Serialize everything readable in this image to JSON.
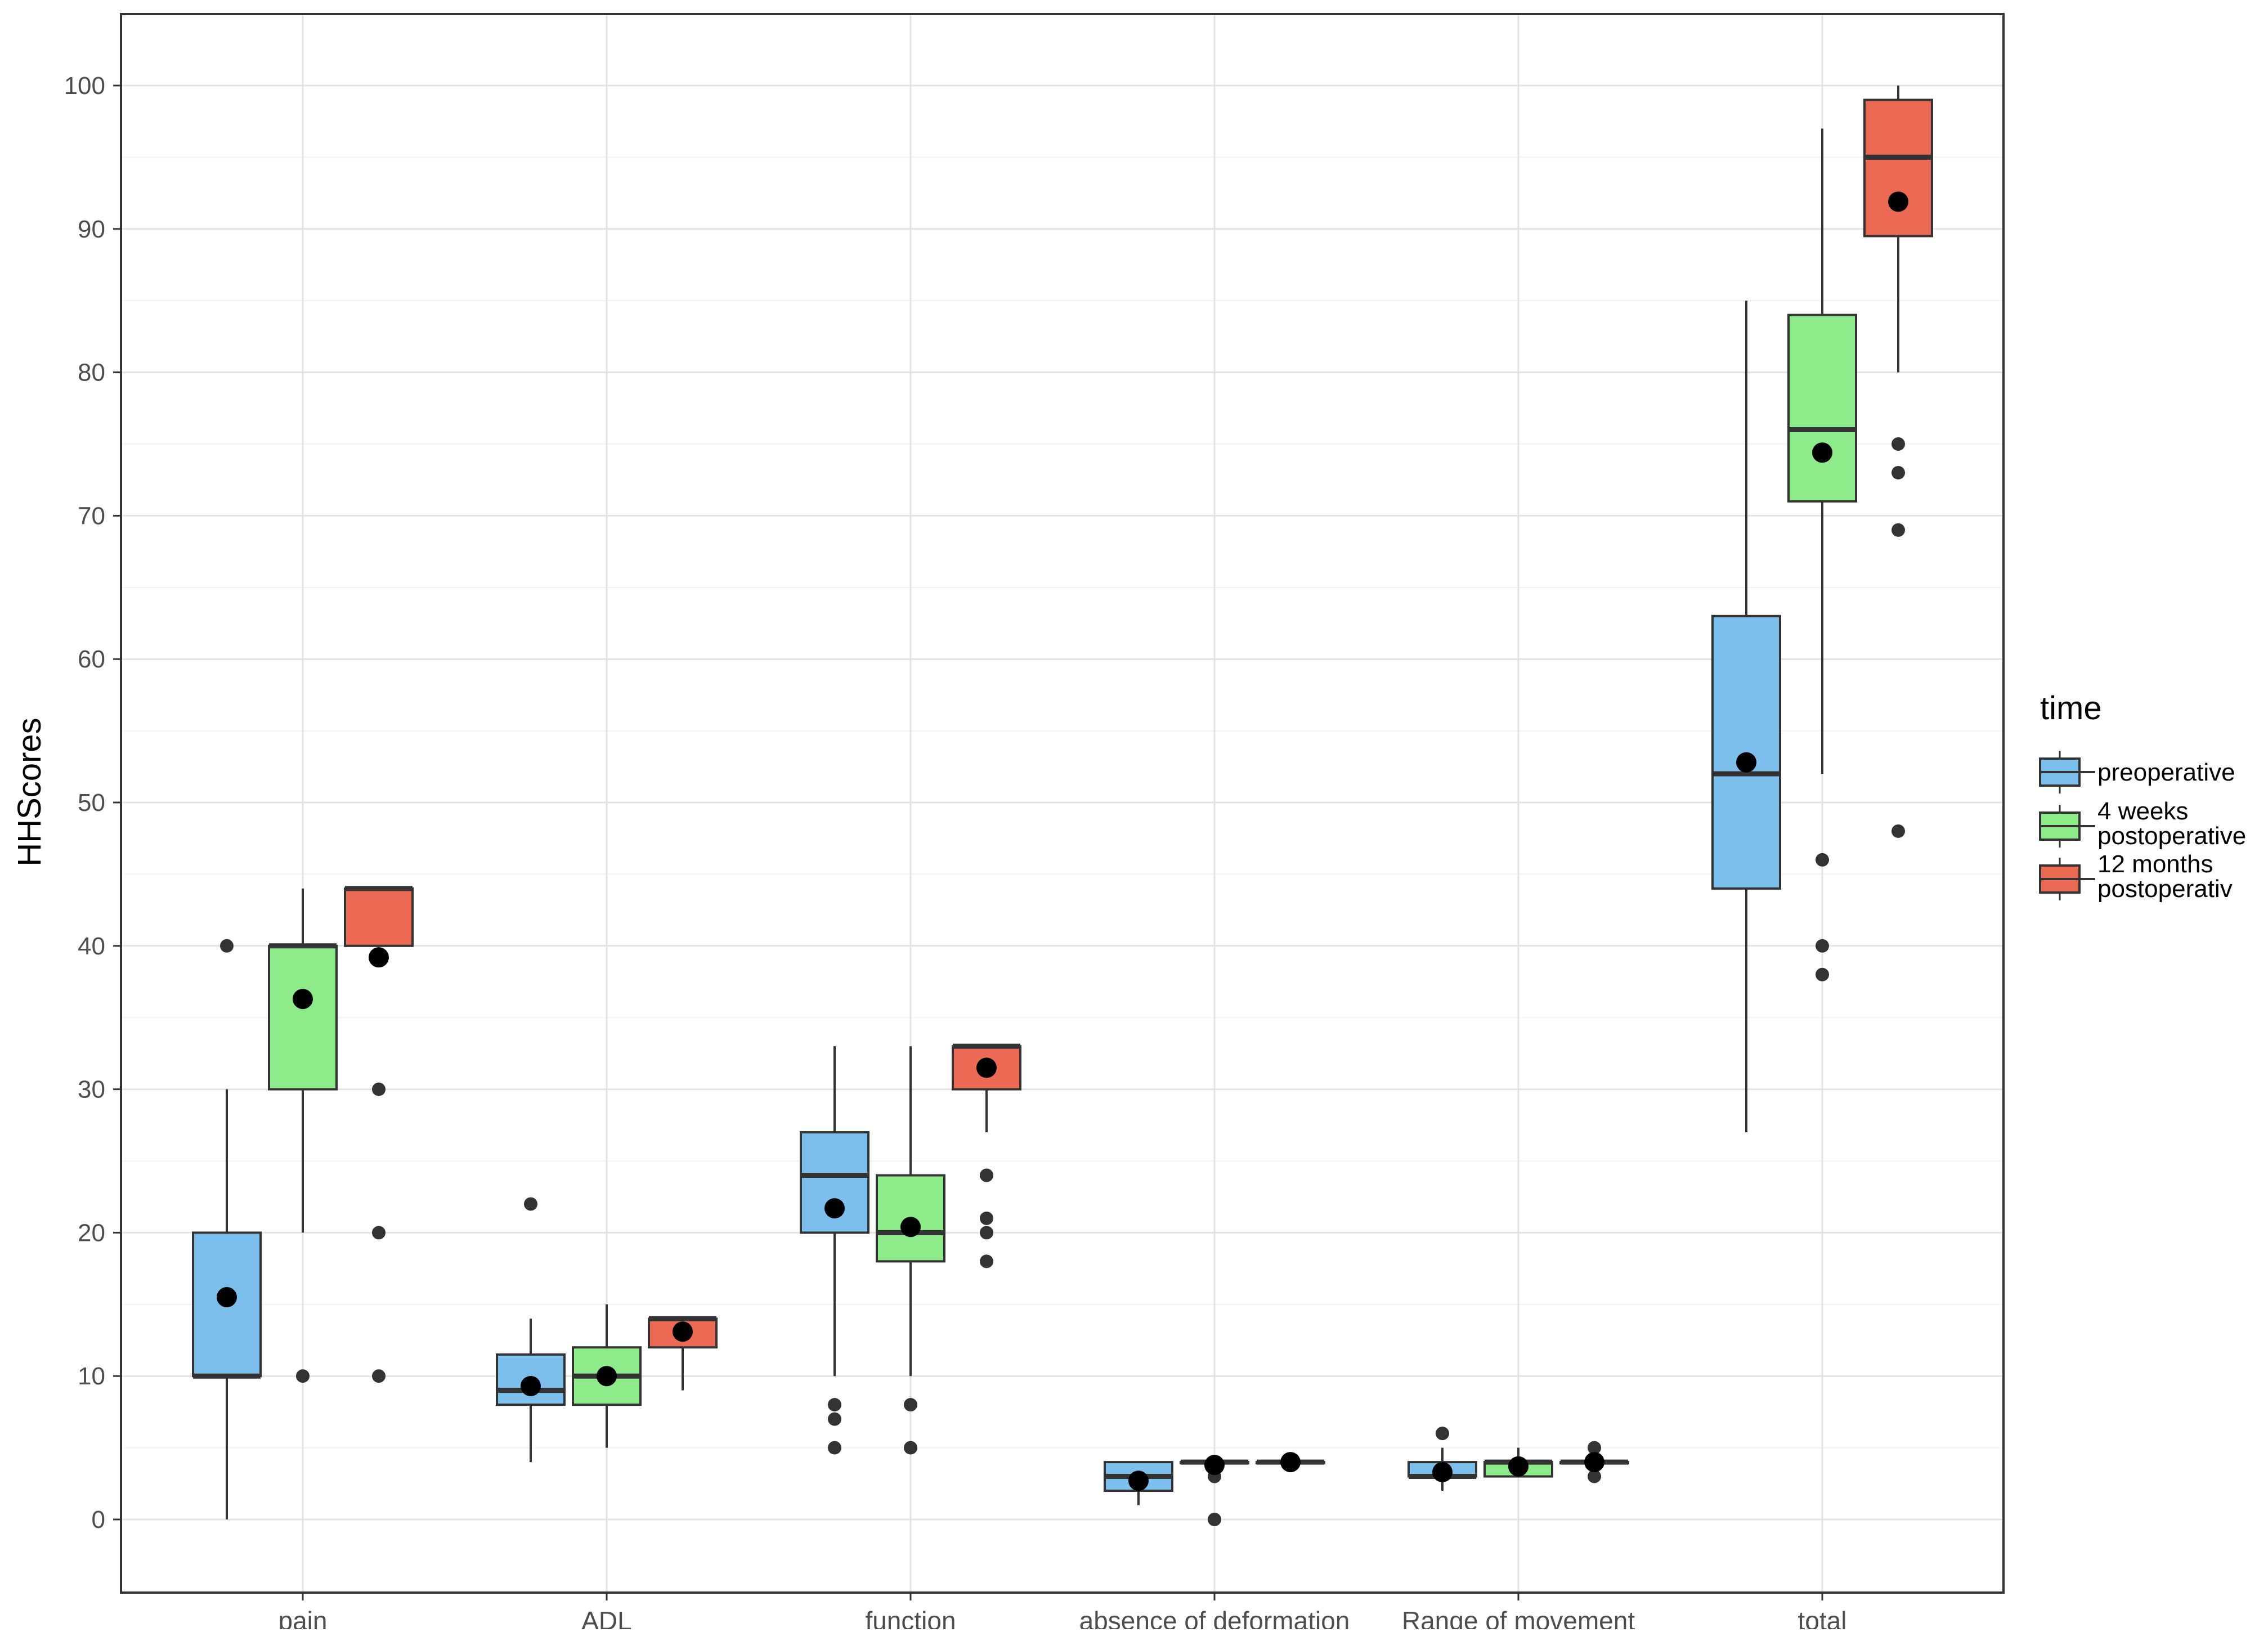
{
  "chart_data": {
    "type": "box",
    "ylabel": "HHScores",
    "xlabel": "",
    "ylim": [
      -5,
      105
    ],
    "yticks": [
      0,
      10,
      20,
      30,
      40,
      50,
      60,
      70,
      80,
      90,
      100
    ],
    "grid": true,
    "legend_position": "right",
    "categories": [
      "pain",
      "ADL",
      "function",
      "absence of deformation",
      "Range of movement",
      "total"
    ],
    "legend": {
      "title": "time",
      "entries": [
        {
          "label_lines": [
            "preoperative"
          ],
          "color": "#7dbfec"
        },
        {
          "label_lines": [
            "4 weeks",
            "postoperative"
          ],
          "color": "#8deb8a"
        },
        {
          "label_lines": [
            "12 months",
            "postoperativ"
          ],
          "color": "#ec6953"
        }
      ]
    },
    "series": [
      {
        "name": "preoperative",
        "color": "#7dbfec",
        "boxes": [
          {
            "category": "pain",
            "whisker_low": 0,
            "q1": 10,
            "median": 10,
            "q3": 20,
            "whisker_high": 30,
            "mean": 15.5,
            "outliers": [
              40
            ]
          },
          {
            "category": "ADL",
            "whisker_low": 4,
            "q1": 8,
            "median": 9,
            "q3": 11.5,
            "whisker_high": 14,
            "mean": 9.3,
            "outliers": [
              22
            ]
          },
          {
            "category": "function",
            "whisker_low": 10,
            "q1": 20,
            "median": 24,
            "q3": 27,
            "whisker_high": 33,
            "mean": 21.7,
            "outliers": [
              8,
              7,
              5
            ]
          },
          {
            "category": "absence of deformation",
            "whisker_low": 1,
            "q1": 2,
            "median": 3,
            "q3": 4,
            "whisker_high": 4,
            "mean": 2.7,
            "outliers": []
          },
          {
            "category": "Range of movement",
            "whisker_low": 2,
            "q1": 3,
            "median": 3,
            "q3": 4,
            "whisker_high": 5,
            "mean": 3.3,
            "outliers": [
              6
            ]
          },
          {
            "category": "total",
            "whisker_low": 27,
            "q1": 44,
            "median": 52,
            "q3": 63,
            "whisker_high": 85,
            "mean": 52.8,
            "outliers": []
          }
        ]
      },
      {
        "name": "4 weeks postoperative",
        "color": "#8deb8a",
        "boxes": [
          {
            "category": "pain",
            "whisker_low": 20,
            "q1": 30,
            "median": 40,
            "q3": 40,
            "whisker_high": 44,
            "mean": 36.3,
            "outliers": [
              10
            ]
          },
          {
            "category": "ADL",
            "whisker_low": 5,
            "q1": 8,
            "median": 10,
            "q3": 12,
            "whisker_high": 15,
            "mean": 10,
            "outliers": []
          },
          {
            "category": "function",
            "whisker_low": 10,
            "q1": 18,
            "median": 20,
            "q3": 24,
            "whisker_high": 33,
            "mean": 20.4,
            "outliers": [
              8,
              5
            ]
          },
          {
            "category": "absence of deformation",
            "whisker_low": 4,
            "q1": 4,
            "median": 4,
            "q3": 4,
            "whisker_high": 4,
            "mean": 3.8,
            "outliers": [
              3,
              0
            ]
          },
          {
            "category": "Range of movement",
            "whisker_low": 3,
            "q1": 3,
            "median": 4,
            "q3": 4,
            "whisker_high": 5,
            "mean": 3.7,
            "outliers": []
          },
          {
            "category": "total",
            "whisker_low": 52,
            "q1": 71,
            "median": 76,
            "q3": 84,
            "whisker_high": 97,
            "mean": 74.4,
            "outliers": [
              46,
              40,
              38
            ]
          }
        ]
      },
      {
        "name": "12 months postoperativ",
        "color": "#ec6953",
        "boxes": [
          {
            "category": "pain",
            "whisker_low": 40,
            "q1": 40,
            "median": 44,
            "q3": 44,
            "whisker_high": 44,
            "mean": 39.2,
            "outliers": [
              30,
              20,
              10
            ]
          },
          {
            "category": "ADL",
            "whisker_low": 9,
            "q1": 12,
            "median": 14,
            "q3": 14,
            "whisker_high": 14,
            "mean": 13.1,
            "outliers": []
          },
          {
            "category": "function",
            "whisker_low": 27,
            "q1": 30,
            "median": 33,
            "q3": 33,
            "whisker_high": 33,
            "mean": 31.5,
            "outliers": [
              24,
              21,
              20,
              18
            ]
          },
          {
            "category": "absence of deformation",
            "whisker_low": 4,
            "q1": 4,
            "median": 4,
            "q3": 4,
            "whisker_high": 4,
            "mean": 4,
            "outliers": []
          },
          {
            "category": "Range of movement",
            "whisker_low": 4,
            "q1": 4,
            "median": 4,
            "q3": 4,
            "whisker_high": 4,
            "mean": 4,
            "outliers": [
              5,
              3
            ]
          },
          {
            "category": "total",
            "whisker_low": 80,
            "q1": 89.5,
            "median": 95,
            "q3": 99,
            "whisker_high": 100,
            "mean": 91.9,
            "outliers": [
              75,
              73,
              69,
              48
            ]
          }
        ]
      }
    ]
  }
}
